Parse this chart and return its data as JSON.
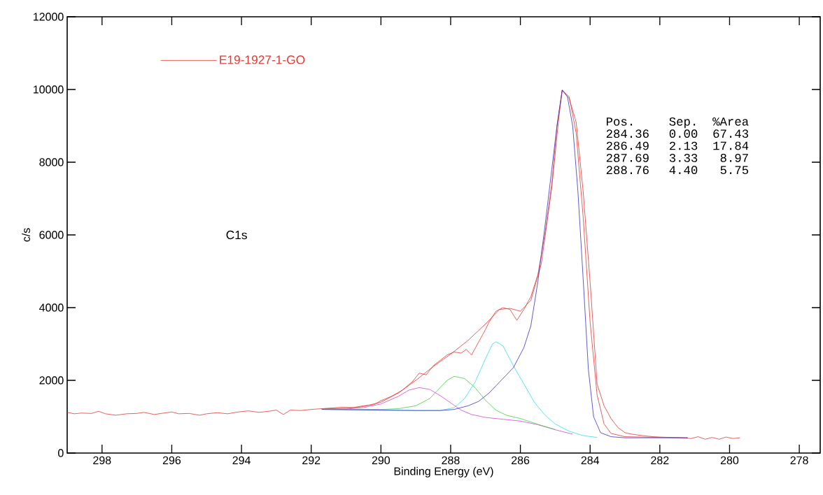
{
  "chart_data": {
    "type": "line",
    "xlabel": "Binding Energy (eV)",
    "ylabel": "c/s",
    "xlim": [
      299,
      277.4
    ],
    "ylim": [
      0,
      12000
    ],
    "xticks": [
      298,
      296,
      294,
      292,
      290,
      288,
      286,
      284,
      282,
      280,
      278
    ],
    "yticks": [
      0,
      2000,
      4000,
      6000,
      8000,
      10000,
      12000
    ],
    "grid": false,
    "legend": "top left",
    "annotations": [
      "C1s",
      "Pos.",
      "Sep.",
      "%Area",
      "284.36",
      "0.00",
      "67.43",
      "286.49",
      "2.13",
      "17.84",
      "287.69",
      "3.33",
      "8.97",
      "288.76",
      "4.40",
      "5.75"
    ],
    "series": [
      {
        "name": "E19-1927-1-GO",
        "color": "#e03a36",
        "x": [
          299.0,
          298.8,
          298.6,
          298.3,
          298.1,
          297.9,
          297.6,
          297.3,
          297.0,
          296.8,
          296.5,
          296.3,
          296.0,
          295.8,
          295.5,
          295.2,
          295.0,
          294.7,
          294.4,
          294.1,
          293.8,
          293.5,
          293.3,
          293.0,
          292.8,
          292.6,
          292.3,
          292.0,
          291.7,
          291.4,
          291.1,
          290.8,
          290.5,
          290.2,
          290.0,
          289.7,
          289.4,
          289.1,
          288.9,
          288.7,
          288.5,
          288.3,
          288.1,
          287.9,
          287.7,
          287.55,
          287.4,
          287.2,
          287.0,
          286.9,
          286.7,
          286.5,
          286.3,
          286.1,
          285.9,
          285.7,
          285.5,
          285.3,
          285.1,
          284.95,
          284.8,
          284.6,
          284.4,
          284.2,
          284.0,
          283.8,
          283.6,
          283.4,
          283.2,
          283.0,
          282.8,
          282.5,
          282.2,
          282.0,
          281.7,
          281.4,
          281.1,
          280.9,
          280.7,
          280.5,
          280.3,
          280.1,
          279.9,
          279.7
        ],
        "values": [
          1120,
          1080,
          1100,
          1090,
          1150,
          1080,
          1040,
          1080,
          1090,
          1120,
          1060,
          1090,
          1130,
          1080,
          1090,
          1040,
          1080,
          1110,
          1080,
          1130,
          1160,
          1120,
          1140,
          1180,
          1060,
          1180,
          1170,
          1200,
          1220,
          1240,
          1260,
          1250,
          1300,
          1330,
          1440,
          1560,
          1720,
          1960,
          2200,
          2150,
          2400,
          2550,
          2700,
          2780,
          2750,
          2850,
          2700,
          3050,
          3400,
          3600,
          3900,
          4000,
          3950,
          3650,
          3950,
          4300,
          4900,
          6000,
          7400,
          9000,
          9990,
          9750,
          9100,
          7200,
          4700,
          1900,
          1300,
          950,
          700,
          560,
          520,
          480,
          450,
          440,
          430,
          420,
          400,
          450,
          380,
          430,
          380,
          440,
          400,
          420
        ]
      },
      {
        "color": "#e03a36",
        "x": [
          291.7,
          291.0,
          290.5,
          290.0,
          289.5,
          289.0,
          288.5,
          288.0,
          287.5,
          287.0,
          286.6,
          286.3,
          286.0,
          285.7,
          285.4,
          285.1,
          284.9,
          284.8,
          284.6,
          284.4,
          284.2,
          284.0,
          283.8,
          283.6,
          283.4,
          283.0,
          282.0,
          281.2
        ],
        "values": [
          1220,
          1230,
          1280,
          1400,
          1650,
          2000,
          2380,
          2720,
          3100,
          3550,
          3950,
          3980,
          3900,
          4200,
          5200,
          7300,
          9200,
          9980,
          9800,
          8800,
          6500,
          3600,
          1600,
          800,
          540,
          450,
          430,
          420
        ]
      },
      {
        "color": "#d048d0",
        "x": [
          291.7,
          291.0,
          290.5,
          290.0,
          289.5,
          289.2,
          288.9,
          288.6,
          288.3,
          288.0,
          287.7,
          287.4,
          287.0,
          286.5,
          286.0,
          285.5,
          285.0,
          284.5
        ],
        "values": [
          1220,
          1210,
          1250,
          1350,
          1560,
          1730,
          1800,
          1750,
          1580,
          1380,
          1180,
          1060,
          980,
          930,
          880,
          780,
          640,
          520
        ]
      },
      {
        "color": "#40d040",
        "x": [
          291.7,
          290.0,
          289.5,
          289.0,
          288.6,
          288.3,
          288.1,
          287.9,
          287.6,
          287.3,
          287.0,
          286.7,
          286.4,
          286.0,
          285.5,
          285.0
        ],
        "values": [
          1210,
          1200,
          1220,
          1300,
          1500,
          1800,
          2000,
          2110,
          2050,
          1800,
          1450,
          1180,
          1040,
          950,
          790,
          650
        ]
      },
      {
        "color": "#30e0e8",
        "x": [
          291.7,
          289.0,
          288.3,
          287.9,
          287.6,
          287.3,
          287.0,
          286.8,
          286.7,
          286.5,
          286.2,
          285.9,
          285.6,
          285.3,
          285.0,
          284.6,
          284.2,
          283.8
        ],
        "values": [
          1200,
          1170,
          1170,
          1250,
          1500,
          1950,
          2600,
          3000,
          3060,
          2950,
          2400,
          1900,
          1400,
          1050,
          800,
          600,
          480,
          430
        ]
      },
      {
        "color": "#3a30d0",
        "x": [
          291.7,
          289.0,
          288.3,
          287.9,
          287.5,
          287.2,
          286.9,
          286.6,
          286.2,
          285.9,
          285.7,
          285.5,
          285.3,
          285.1,
          284.95,
          284.8,
          284.65,
          284.5,
          284.35,
          284.2,
          284.05,
          283.9,
          283.7,
          283.4,
          283.0,
          281.2
        ],
        "values": [
          1200,
          1170,
          1170,
          1200,
          1300,
          1420,
          1650,
          1950,
          2350,
          2900,
          3500,
          4700,
          6200,
          7800,
          9000,
          9980,
          9800,
          9000,
          7200,
          4800,
          2300,
          1000,
          560,
          450,
          420,
          420
        ]
      }
    ]
  }
}
